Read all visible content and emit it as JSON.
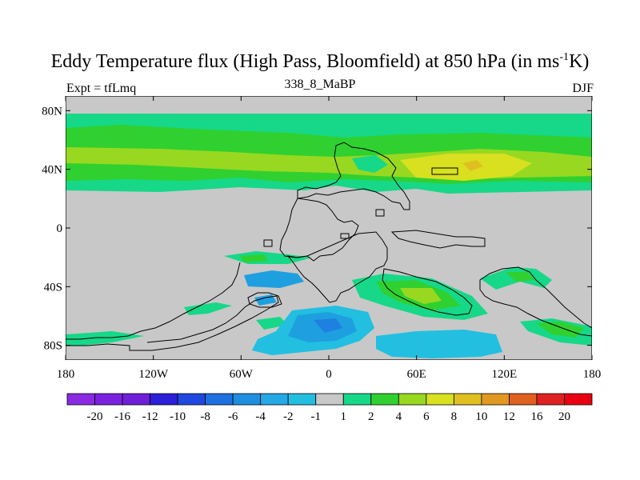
{
  "title": {
    "main": "Eddy Temperature flux (High Pass, Bloomfield) at 850 hPa (in ms",
    "sup": "-1",
    "unit_end": "K)"
  },
  "subtitle_left": "Expt = tfLmq",
  "subtitle_center": "338_8_MaBP",
  "subtitle_right": "DJF",
  "axes": {
    "y_ticks": [
      "80N",
      "40N",
      "0",
      "40S",
      "80S"
    ],
    "y_values": [
      80,
      40,
      0,
      -40,
      -80
    ],
    "x_ticks": [
      "180",
      "120W",
      "60W",
      "0",
      "60E",
      "120E",
      "180"
    ],
    "x_values": [
      -180,
      -120,
      -60,
      0,
      60,
      120,
      180
    ]
  },
  "colorbar": {
    "labels": [
      "-20",
      "-16",
      "-12",
      "-10",
      "-8",
      "-6",
      "-4",
      "-2",
      "-1",
      "1",
      "2",
      "4",
      "6",
      "8",
      "10",
      "12",
      "16",
      "20"
    ],
    "colors": [
      "#8a2be2",
      "#7b22e0",
      "#6f1fd8",
      "#2b20d8",
      "#1e48e0",
      "#1c70e0",
      "#1e8fe0",
      "#24a8e6",
      "#22bfe0",
      "#c8c8c8",
      "#16d888",
      "#30d030",
      "#98d820",
      "#d8e020",
      "#e0c020",
      "#e09820",
      "#e06020",
      "#e02020",
      "#e80010"
    ]
  },
  "fill_colors": {
    "background": "#c8c8c8",
    "lev1": "#16d888",
    "lev2": "#30d030",
    "lev3": "#98d820",
    "lev4": "#d8e020",
    "lev5": "#e0c020",
    "neg1": "#22bfe0",
    "neg2": "#1e9fe0",
    "neg3": "#1e80e0"
  }
}
